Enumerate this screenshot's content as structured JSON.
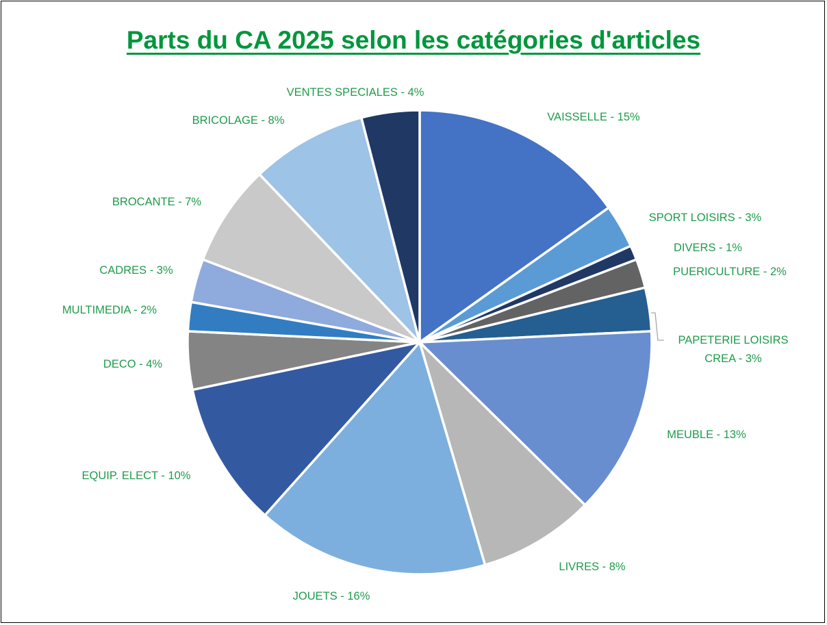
{
  "chart_data": {
    "type": "pie",
    "title": "Parts du CA 2025 selon les catégories d'articles",
    "slices": [
      {
        "label": "VAISSELLE - 15%",
        "value": 15,
        "color": "#4472C4"
      },
      {
        "label": "SPORT LOISIRS - 3%",
        "value": 3,
        "color": "#5B9BD5"
      },
      {
        "label": "DIVERS - 1%",
        "value": 1,
        "color": "#203864"
      },
      {
        "label": "PUERICULTURE - 2%",
        "value": 2,
        "color": "#636363"
      },
      {
        "label": "PAPETERIE LOISIRS CREA - 3%",
        "value": 3,
        "color": "#255E91"
      },
      {
        "label": "MEUBLE - 13%",
        "value": 13,
        "color": "#698ED0"
      },
      {
        "label": "LIVRES - 8%",
        "value": 8,
        "color": "#B7B7B7"
      },
      {
        "label": "JOUETS - 16%",
        "value": 16,
        "color": "#7CAFDD"
      },
      {
        "label": "EQUIP. ELECT - 10%",
        "value": 10,
        "color": "#335AA1"
      },
      {
        "label": "DECO - 4%",
        "value": 4,
        "color": "#848484"
      },
      {
        "label": "MULTIMEDIA - 2%",
        "value": 2,
        "color": "#327DC2"
      },
      {
        "label": "CADRES - 3%",
        "value": 3,
        "color": "#8FAADC"
      },
      {
        "label": "BROCANTE - 7%",
        "value": 7,
        "color": "#C9C9C9"
      },
      {
        "label": "BRICOLAGE  - 8%",
        "value": 8,
        "color": "#9DC3E6"
      },
      {
        "label": "VENTES SPECIALES - 4%",
        "value": 4,
        "color": "#203864"
      }
    ],
    "label_color": "#1f9b4a",
    "title_color": "#00963c"
  }
}
